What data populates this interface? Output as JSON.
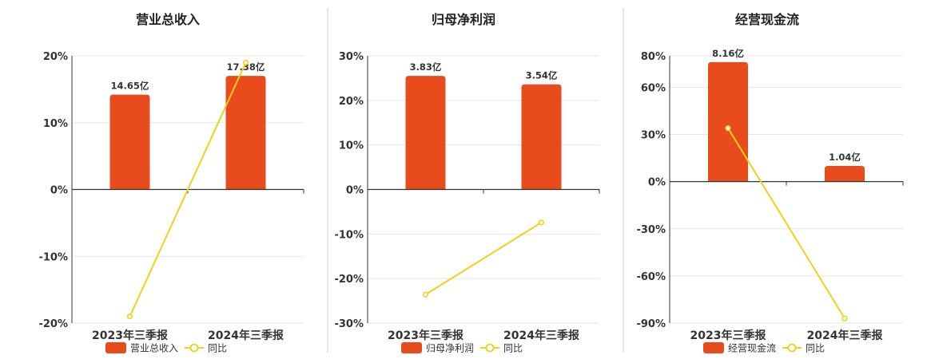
{
  "colors": {
    "bar": "#E84C1C",
    "line": "#F2D01B",
    "grid": "#E6E6E6",
    "axis": "#333333",
    "divider": "#CCCCCC"
  },
  "chart_data": [
    {
      "type": "bar",
      "title": "营业总收入",
      "categories": [
        "2023年三季报",
        "2024年三季报"
      ],
      "ylim": [
        -20,
        20
      ],
      "yticks": [
        "20%",
        "10%",
        "0%",
        "-10%",
        "-20%"
      ],
      "yticks_values": [
        20,
        10,
        0,
        -10,
        -20
      ],
      "series": [
        {
          "name": "营业总收入",
          "type": "bar",
          "values": [
            14.2,
            17.0
          ],
          "labels": [
            "14.65亿",
            "17.38亿"
          ]
        },
        {
          "name": "同比",
          "type": "line",
          "values": [
            -19.0,
            19.0
          ]
        }
      ]
    },
    {
      "type": "bar",
      "title": "归母净利润",
      "categories": [
        "2023年三季报",
        "2024年三季报"
      ],
      "ylim": [
        -30,
        30
      ],
      "yticks": [
        "30%",
        "20%",
        "10%",
        "0%",
        "-10%",
        "-20%",
        "-30%"
      ],
      "yticks_values": [
        30,
        20,
        10,
        0,
        -10,
        -20,
        -30
      ],
      "series": [
        {
          "name": "归母净利润",
          "type": "bar",
          "values": [
            25.5,
            23.6
          ],
          "labels": [
            "3.83亿",
            "3.54亿"
          ]
        },
        {
          "name": "同比",
          "type": "line",
          "values": [
            -23.6,
            -7.4
          ]
        }
      ]
    },
    {
      "type": "bar",
      "title": "经营现金流",
      "categories": [
        "2023年三季报",
        "2024年三季报"
      ],
      "ylim": [
        -90,
        80
      ],
      "yticks": [
        "80%",
        "60%",
        "30%",
        "0%",
        "-30%",
        "-60%",
        "-90%"
      ],
      "yticks_values": [
        80,
        60,
        30,
        0,
        -30,
        -60,
        -90
      ],
      "series": [
        {
          "name": "经营现金流",
          "type": "bar",
          "values": [
            76,
            10
          ],
          "labels": [
            "8.16亿",
            "1.04亿"
          ]
        },
        {
          "name": "同比",
          "type": "line",
          "values": [
            34,
            -87
          ]
        }
      ]
    }
  ]
}
